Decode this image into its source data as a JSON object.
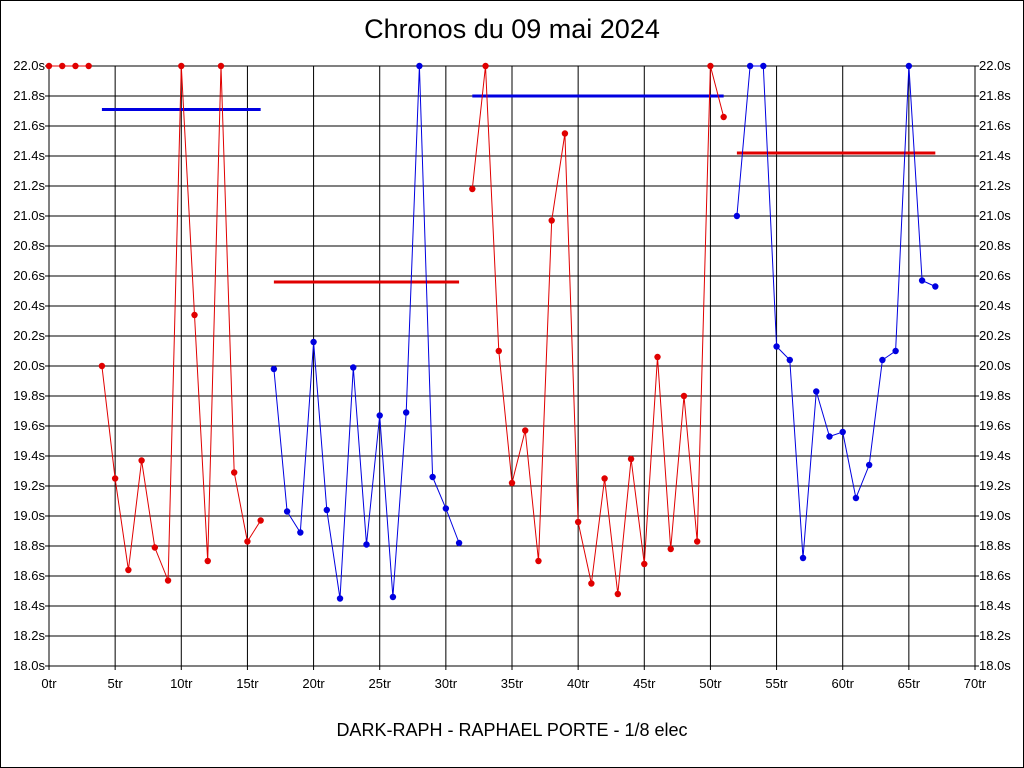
{
  "chart_data": {
    "type": "line",
    "title": "Chronos du 09 mai 2024",
    "footer": "DARK-RAPH - RAPHAEL PORTE - 1/8 elec",
    "xlabel": "",
    "ylabel": "",
    "xlim": [
      0,
      70
    ],
    "ylim": [
      18.0,
      22.0
    ],
    "grid": true,
    "x_ticks": [
      {
        "v": 0,
        "label": "0tr"
      },
      {
        "v": 5,
        "label": "5tr"
      },
      {
        "v": 10,
        "label": "10tr"
      },
      {
        "v": 15,
        "label": "15tr"
      },
      {
        "v": 20,
        "label": "20tr"
      },
      {
        "v": 25,
        "label": "25tr"
      },
      {
        "v": 30,
        "label": "30tr"
      },
      {
        "v": 35,
        "label": "35tr"
      },
      {
        "v": 40,
        "label": "40tr"
      },
      {
        "v": 45,
        "label": "45tr"
      },
      {
        "v": 50,
        "label": "50tr"
      },
      {
        "v": 55,
        "label": "55tr"
      },
      {
        "v": 60,
        "label": "60tr"
      },
      {
        "v": 65,
        "label": "65tr"
      },
      {
        "v": 70,
        "label": "70tr"
      }
    ],
    "y_ticks": [
      {
        "v": 18.0,
        "label": "18.0s"
      },
      {
        "v": 18.2,
        "label": "18.2s"
      },
      {
        "v": 18.4,
        "label": "18.4s"
      },
      {
        "v": 18.6,
        "label": "18.6s"
      },
      {
        "v": 18.8,
        "label": "18.8s"
      },
      {
        "v": 19.0,
        "label": "19.0s"
      },
      {
        "v": 19.2,
        "label": "19.2s"
      },
      {
        "v": 19.4,
        "label": "19.4s"
      },
      {
        "v": 19.6,
        "label": "19.6s"
      },
      {
        "v": 19.8,
        "label": "19.8s"
      },
      {
        "v": 20.0,
        "label": "20.0s"
      },
      {
        "v": 20.2,
        "label": "20.2s"
      },
      {
        "v": 20.4,
        "label": "20.4s"
      },
      {
        "v": 20.6,
        "label": "20.6s"
      },
      {
        "v": 20.8,
        "label": "20.8s"
      },
      {
        "v": 21.0,
        "label": "21.0s"
      },
      {
        "v": 21.2,
        "label": "21.2s"
      },
      {
        "v": 21.4,
        "label": "21.4s"
      },
      {
        "v": 21.6,
        "label": "21.6s"
      },
      {
        "v": 21.8,
        "label": "21.8s"
      },
      {
        "v": 22.0,
        "label": "22.0s"
      }
    ],
    "series": [
      {
        "color": "#e00000",
        "points": [
          [
            0,
            22.0
          ],
          [
            1,
            22.0
          ],
          [
            2,
            22.0
          ],
          [
            3,
            22.0
          ]
        ]
      },
      {
        "color": "#e00000",
        "points": [
          [
            4,
            20.0
          ],
          [
            5,
            19.25
          ],
          [
            6,
            18.64
          ],
          [
            7,
            19.37
          ],
          [
            8,
            18.79
          ],
          [
            9,
            18.57
          ],
          [
            10,
            22.0
          ],
          [
            11,
            20.34
          ],
          [
            12,
            18.7
          ],
          [
            13,
            22.0
          ],
          [
            14,
            19.29
          ],
          [
            15,
            18.83
          ],
          [
            16,
            18.97
          ]
        ]
      },
      {
        "color": "#0000e0",
        "points": [
          [
            17,
            19.98
          ],
          [
            18,
            19.03
          ],
          [
            19,
            18.89
          ],
          [
            20,
            20.16
          ],
          [
            21,
            19.04
          ],
          [
            22,
            18.45
          ],
          [
            23,
            19.99
          ],
          [
            24,
            18.81
          ],
          [
            25,
            19.67
          ],
          [
            26,
            18.46
          ],
          [
            27,
            19.69
          ],
          [
            28,
            22.0
          ],
          [
            29,
            19.26
          ],
          [
            30,
            19.05
          ],
          [
            31,
            18.82
          ]
        ]
      },
      {
        "color": "#e00000",
        "points": [
          [
            32,
            21.18
          ],
          [
            33,
            22.0
          ],
          [
            34,
            20.1
          ],
          [
            35,
            19.22
          ],
          [
            36,
            19.57
          ],
          [
            37,
            18.7
          ],
          [
            38,
            20.97
          ],
          [
            39,
            21.55
          ],
          [
            40,
            18.96
          ],
          [
            41,
            18.55
          ],
          [
            42,
            19.25
          ],
          [
            43,
            18.48
          ],
          [
            44,
            19.38
          ],
          [
            45,
            18.68
          ],
          [
            46,
            20.06
          ],
          [
            47,
            18.78
          ],
          [
            48,
            19.8
          ],
          [
            49,
            18.83
          ],
          [
            50,
            22.0
          ],
          [
            51,
            21.66
          ]
        ]
      },
      {
        "color": "#0000e0",
        "points": [
          [
            52,
            21.0
          ],
          [
            53,
            22.0
          ],
          [
            54,
            22.0
          ],
          [
            55,
            20.13
          ],
          [
            56,
            20.04
          ],
          [
            57,
            18.72
          ],
          [
            58,
            19.83
          ],
          [
            59,
            19.53
          ],
          [
            60,
            19.56
          ],
          [
            61,
            19.12
          ],
          [
            62,
            19.34
          ],
          [
            63,
            20.04
          ],
          [
            64,
            20.1
          ],
          [
            65,
            22.0
          ],
          [
            66,
            20.57
          ],
          [
            67,
            20.53
          ]
        ]
      }
    ],
    "averages": [
      {
        "color": "#0000e0",
        "x": [
          4,
          16
        ],
        "y": 21.71
      },
      {
        "color": "#e00000",
        "x": [
          17,
          31
        ],
        "y": 20.56
      },
      {
        "color": "#0000e0",
        "x": [
          32,
          51
        ],
        "y": 21.8
      },
      {
        "color": "#e00000",
        "x": [
          52,
          67
        ],
        "y": 21.42
      }
    ]
  }
}
